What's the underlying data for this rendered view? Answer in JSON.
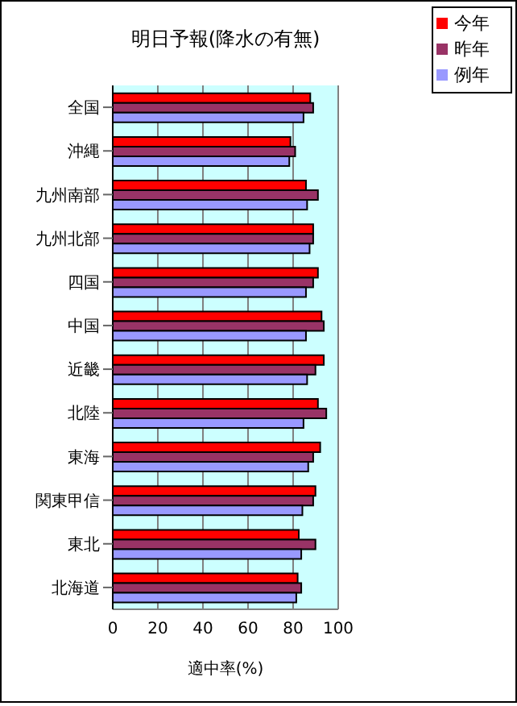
{
  "chart_data": {
    "type": "bar",
    "orientation": "horizontal",
    "title": "明日予報(降水の有無)",
    "xlabel": "適中率(%)",
    "categories": [
      "全国",
      "沖縄",
      "九州南部",
      "九州北部",
      "四国",
      "中国",
      "近畿",
      "北陸",
      "東海",
      "関東甲信",
      "東北",
      "北海道"
    ],
    "series": [
      {
        "name": "今年",
        "color": "#ff0000",
        "values": [
          87.6,
          78.8,
          85.7,
          88.9,
          91.0,
          92.6,
          93.6,
          91.0,
          92.0,
          89.9,
          82.5,
          82.0
        ]
      },
      {
        "name": "昨年",
        "color": "#993366",
        "values": [
          88.9,
          80.9,
          91.0,
          88.9,
          88.9,
          93.6,
          89.9,
          94.7,
          88.9,
          88.9,
          89.9,
          83.6
        ]
      },
      {
        "name": "例年",
        "color": "#9999ff",
        "values": [
          84.6,
          78.3,
          86.2,
          87.3,
          85.7,
          85.7,
          86.2,
          84.6,
          86.7,
          84.1,
          83.6,
          81.4
        ]
      }
    ],
    "xlim": [
      0,
      100
    ],
    "xticks": [
      0,
      20,
      40,
      60,
      80,
      100
    ],
    "grid": "x",
    "legend": "top right"
  }
}
